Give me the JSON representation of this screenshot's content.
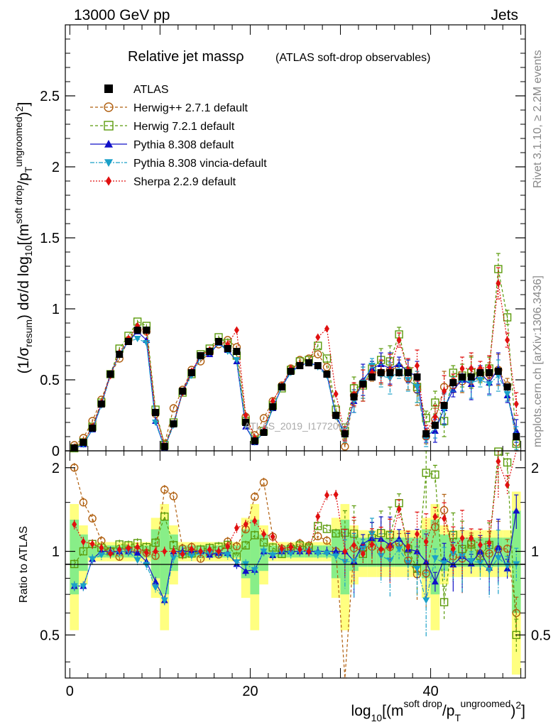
{
  "header": {
    "left": "13000 GeV pp",
    "right": "Jets",
    "side_rivet": "Rivet 3.1.10, ≥ 2.2M events",
    "side_mcplots": "mcplots.cern.ch [arXiv:1306.3436]",
    "watermark": "ATLAS_2019_I1772062"
  },
  "chart_data": {
    "type": "line",
    "title": "Relative jet massρ",
    "subtitle": "(ATLAS soft-drop observables)",
    "xlabel": "log₁₀[(m^(soft drop)/p_T^(ungroomed))²]",
    "ylabel": "(1/σ_resum) dσ/d log₁₀[(m^(soft drop)/p_T^(ungroomed))²]",
    "ratio_ylabel": "Ratio to ATLAS",
    "xlim": [
      -0.5,
      50.5
    ],
    "ylim": [
      0,
      3.0
    ],
    "ratio_ylim": [
      0.35,
      2.3
    ],
    "x_ticks": [
      0,
      20,
      40
    ],
    "y_ticks": [
      0,
      0.5,
      1,
      1.5,
      2,
      2.5
    ],
    "y_tick_labels": [
      "0",
      "0.5",
      "1",
      "1.5",
      "2",
      "2.5"
    ],
    "ratio_y_ticks": [
      0.5,
      1,
      2
    ],
    "ratio_y_tick_labels": [
      "0.5",
      "1",
      "2"
    ],
    "x_tick_labels": [
      "0",
      "20",
      "40"
    ],
    "x": [
      0.5,
      1.5,
      2.5,
      3.5,
      4.5,
      5.5,
      6.5,
      7.5,
      8.5,
      9.5,
      10.5,
      11.5,
      12.5,
      13.5,
      14.5,
      15.5,
      16.5,
      17.5,
      18.5,
      19.5,
      20.5,
      21.5,
      22.5,
      23.5,
      24.5,
      25.5,
      26.5,
      27.5,
      28.5,
      29.5,
      30.5,
      31.5,
      32.5,
      33.5,
      34.5,
      35.5,
      36.5,
      37.5,
      38.5,
      39.5,
      40.5,
      41.5,
      42.5,
      43.5,
      44.5,
      45.5,
      46.5,
      47.5,
      48.5,
      49.5
    ],
    "legend_position": "top-left",
    "series": [
      {
        "name": "ATLAS",
        "color": "#000000",
        "marker": "square-filled",
        "dash": "",
        "values": [
          0.02,
          0.06,
          0.16,
          0.33,
          0.54,
          0.68,
          0.77,
          0.85,
          0.85,
          0.27,
          0.03,
          0.19,
          0.42,
          0.55,
          0.67,
          0.7,
          0.77,
          0.72,
          0.7,
          0.2,
          0.07,
          0.13,
          0.31,
          0.45,
          0.56,
          0.6,
          0.62,
          0.6,
          0.54,
          0.25,
          0.12,
          0.38,
          0.47,
          0.52,
          0.55,
          0.55,
          0.55,
          0.55,
          0.52,
          0.12,
          0.18,
          0.32,
          0.48,
          0.52,
          0.52,
          0.55,
          0.55,
          0.56,
          0.45,
          0.1
        ]
      },
      {
        "name": "Herwig++ 2.7.1 default",
        "color": "#b05f0f",
        "marker": "circle-open",
        "dash": "4,3",
        "values": [
          0.04,
          0.09,
          0.21,
          0.36,
          0.54,
          0.65,
          0.78,
          0.85,
          0.84,
          0.26,
          0.05,
          0.3,
          0.43,
          0.57,
          0.63,
          0.69,
          0.75,
          0.78,
          0.73,
          0.24,
          0.11,
          0.23,
          0.35,
          0.46,
          0.58,
          0.64,
          0.65,
          0.68,
          0.59,
          0.25,
          0.03,
          0.39,
          0.48,
          0.54,
          0.55,
          0.57,
          0.59,
          0.51,
          0.43,
          0.1,
          0.22,
          0.45,
          0.46,
          0.49,
          0.56,
          0.54,
          0.54,
          0.57,
          0.46,
          0.06
        ]
      },
      {
        "name": "Herwig 7.2.1 default",
        "color": "#5a9a0a",
        "marker": "square-open",
        "dash": "4,3",
        "values": [
          0.018,
          0.06,
          0.17,
          0.34,
          0.54,
          0.72,
          0.81,
          0.91,
          0.88,
          0.29,
          0.04,
          0.2,
          0.41,
          0.54,
          0.68,
          0.72,
          0.8,
          0.76,
          0.67,
          0.21,
          0.08,
          0.14,
          0.32,
          0.44,
          0.57,
          0.63,
          0.64,
          0.74,
          0.65,
          0.29,
          0.14,
          0.44,
          0.46,
          0.58,
          0.64,
          0.63,
          0.82,
          0.56,
          0.45,
          0.23,
          0.34,
          0.21,
          0.55,
          0.53,
          0.55,
          0.53,
          0.58,
          1.28,
          0.94,
          0.05
        ]
      },
      {
        "name": "Pythia 8.308 default",
        "color": "#1010c8",
        "marker": "triangle-up",
        "dash": "",
        "values": [
          0.015,
          0.045,
          0.15,
          0.33,
          0.54,
          0.68,
          0.77,
          0.84,
          0.78,
          0.21,
          0.02,
          0.19,
          0.42,
          0.55,
          0.67,
          0.68,
          0.76,
          0.71,
          0.63,
          0.17,
          0.06,
          0.13,
          0.3,
          0.45,
          0.56,
          0.6,
          0.62,
          0.6,
          0.54,
          0.25,
          0.12,
          0.35,
          0.5,
          0.58,
          0.61,
          0.58,
          0.61,
          0.56,
          0.52,
          0.11,
          0.14,
          0.3,
          0.43,
          0.5,
          0.47,
          0.55,
          0.48,
          0.58,
          0.39,
          0.14
        ]
      },
      {
        "name": "Pythia 8.308 vincia-default",
        "color": "#1aa0c8",
        "marker": "triangle-down",
        "dash": "6,2,2,2",
        "values": [
          0.015,
          0.045,
          0.15,
          0.32,
          0.53,
          0.68,
          0.77,
          0.79,
          0.76,
          0.2,
          0.02,
          0.18,
          0.41,
          0.53,
          0.66,
          0.69,
          0.76,
          0.7,
          0.64,
          0.18,
          0.06,
          0.13,
          0.3,
          0.45,
          0.55,
          0.6,
          0.62,
          0.59,
          0.53,
          0.24,
          0.11,
          0.35,
          0.48,
          0.6,
          0.53,
          0.51,
          0.56,
          0.5,
          0.45,
          0.08,
          0.17,
          0.29,
          0.47,
          0.5,
          0.48,
          0.5,
          0.47,
          0.53,
          0.4,
          0.09
        ]
      },
      {
        "name": "Sherpa 2.2.9 default",
        "color": "#e01010",
        "marker": "diamond-filled",
        "dash": "2,2",
        "values": [
          0.025,
          0.065,
          0.17,
          0.34,
          0.53,
          0.69,
          0.79,
          0.88,
          0.84,
          0.27,
          0.03,
          0.19,
          0.41,
          0.56,
          0.67,
          0.71,
          0.77,
          0.75,
          0.85,
          0.25,
          0.09,
          0.15,
          0.35,
          0.46,
          0.58,
          0.61,
          0.62,
          0.8,
          0.86,
          0.4,
          0.12,
          0.4,
          0.46,
          0.55,
          0.56,
          0.57,
          0.78,
          0.57,
          0.6,
          0.13,
          0.24,
          0.42,
          0.49,
          0.58,
          0.58,
          0.58,
          0.59,
          1.18,
          0.78,
          0.33
        ]
      }
    ]
  }
}
